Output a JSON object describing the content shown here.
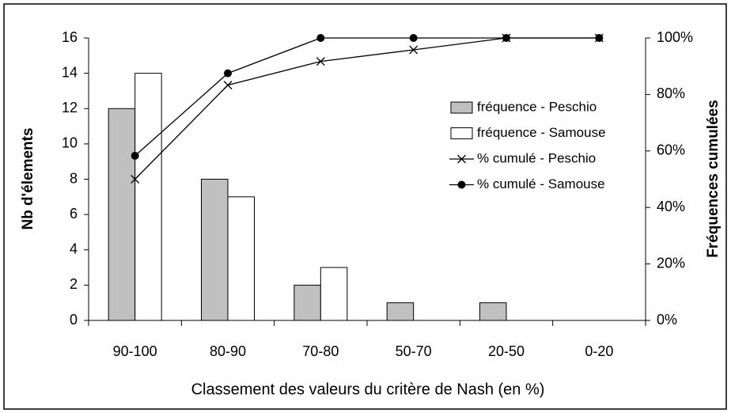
{
  "chart_data": {
    "type": "bar-line",
    "x_label": "Classement des valeurs du critère de Nash (en %)",
    "y_label": "Nb d'élements",
    "y2_label": "Fréquences cumulées",
    "categories": [
      "90-100",
      "80-90",
      "70-80",
      "50-70",
      "20-50",
      "0-20"
    ],
    "series": [
      {
        "name": "fréquence - Peschio",
        "type": "bar",
        "color": "#c0c0c0",
        "values": [
          12,
          8,
          2,
          1,
          1,
          0
        ]
      },
      {
        "name": "fréquence - Samouse",
        "type": "bar",
        "color": "#ffffff",
        "values": [
          14,
          7,
          3,
          0,
          0,
          0
        ]
      },
      {
        "name": "% cumulé - Peschio",
        "type": "line",
        "axis": "y2",
        "marker": "x",
        "color": "#000000",
        "values": [
          50,
          83.3,
          91.7,
          95.8,
          100,
          100
        ]
      },
      {
        "name": "% cumulé - Samouse",
        "type": "line",
        "axis": "y2",
        "marker": "circle",
        "color": "#000000",
        "values": [
          58.3,
          87.5,
          100,
          100,
          100,
          100
        ]
      }
    ],
    "ylim": [
      0,
      16
    ],
    "yticks": [
      0,
      2,
      4,
      6,
      8,
      10,
      12,
      14,
      16
    ],
    "y2lim": [
      0,
      100
    ],
    "y2ticks": [
      {
        "value": 0,
        "label": "0%"
      },
      {
        "value": 20,
        "label": "20%"
      },
      {
        "value": 40,
        "label": "40%"
      },
      {
        "value": 60,
        "label": "60%"
      },
      {
        "value": 80,
        "label": "80%"
      },
      {
        "value": 100,
        "label": "100%"
      }
    ],
    "legend": "right"
  }
}
